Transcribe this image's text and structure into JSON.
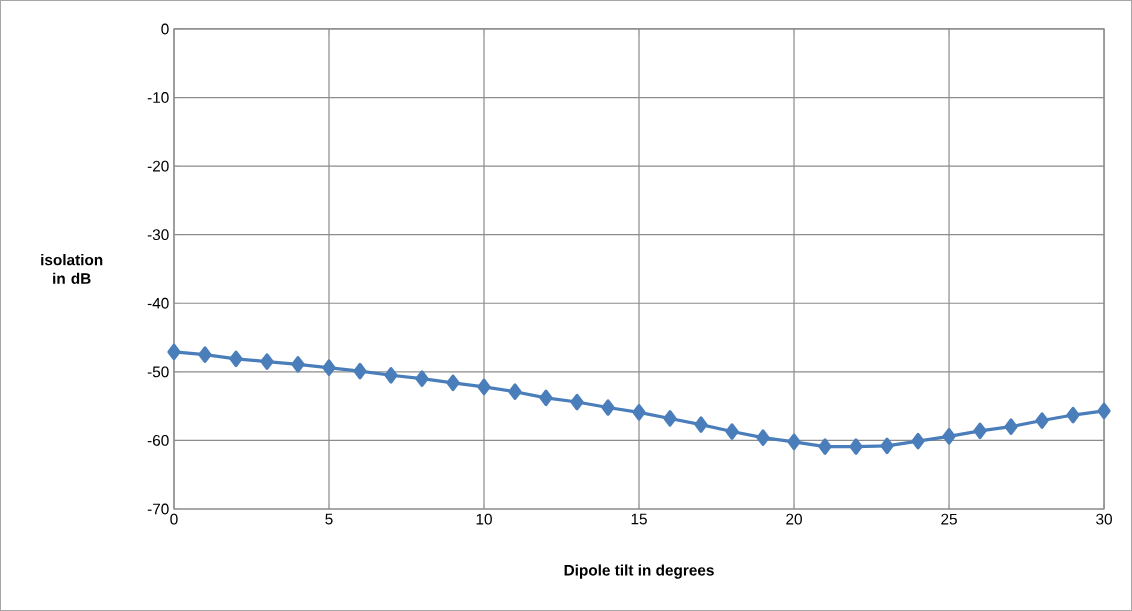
{
  "chart_data": {
    "type": "line",
    "xlabel": "Dipole tilt in degrees",
    "ylabel": "isolation in dB",
    "x": [
      0,
      1,
      2,
      3,
      4,
      5,
      6,
      7,
      8,
      9,
      10,
      11,
      12,
      13,
      14,
      15,
      16,
      17,
      18,
      19,
      20,
      21,
      22,
      23,
      24,
      25,
      26,
      27,
      28,
      29,
      30
    ],
    "series": [
      {
        "color": "#4a7ebb",
        "values": [
          -47.1,
          -47.5,
          -48.1,
          -48.5,
          -48.9,
          -49.4,
          -49.9,
          -50.5,
          -51.0,
          -51.6,
          -52.2,
          -52.9,
          -53.8,
          -54.4,
          -55.2,
          -55.9,
          -56.8,
          -57.7,
          -58.7,
          -59.6,
          -60.2,
          -60.9,
          -60.9,
          -60.8,
          -60.1,
          -59.4,
          -58.6,
          -58.0,
          -57.1,
          -56.3,
          -55.7
        ]
      }
    ],
    "xlim": [
      0,
      30
    ],
    "xticks": [
      0,
      5,
      10,
      15,
      20,
      25,
      30
    ],
    "ylim": [
      -70,
      0
    ],
    "yticks": [
      -70,
      -60,
      -50,
      -40,
      -30,
      -20,
      -10,
      0
    ],
    "grid": true,
    "marker": "diamond",
    "line_style": "solid"
  }
}
